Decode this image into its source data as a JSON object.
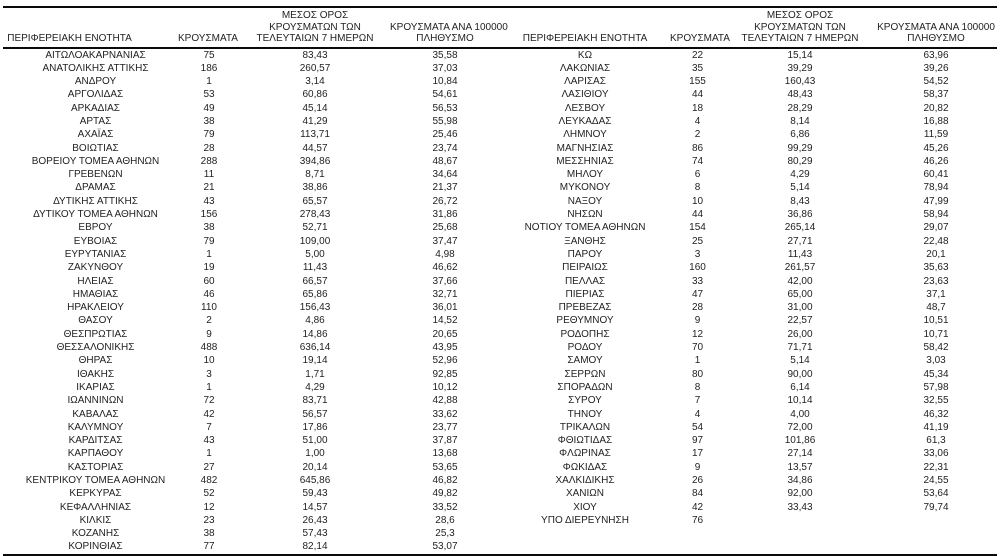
{
  "table": {
    "headers": {
      "region": "ΠΕΡΙΦΕΡΕΙΑΚΗ ΕΝΟΤΗΤΑ",
      "cases": "ΚΡΟΥΣΜΑΤΑ",
      "avg7_lines": [
        "ΜΕΣΟΣ ΟΡΟΣ",
        "ΚΡΟΥΣΜΑΤΩΝ ΤΩΝ",
        "ΤΕΛΕΥΤΑΙΩΝ 7 ΗΜΕΡΩΝ"
      ],
      "per100k_lines": [
        "ΚΡΟΥΣΜΑΤΑ ΑΝΑ 100000",
        "ΠΛΗΘΥΣΜΟ"
      ]
    },
    "rows_left": [
      [
        "ΑΙΤΩΛΟΑΚΑΡΝΑΝΙΑΣ",
        "75",
        "83,43",
        "35,58"
      ],
      [
        "ΑΝΑΤΟΛΙΚΗΣ ΑΤΤΙΚΗΣ",
        "186",
        "260,57",
        "37,03"
      ],
      [
        "ΑΝΔΡΟΥ",
        "1",
        "3,14",
        "10,84"
      ],
      [
        "ΑΡΓΟΛΙΔΑΣ",
        "53",
        "60,86",
        "54,61"
      ],
      [
        "ΑΡΚΑΔΙΑΣ",
        "49",
        "45,14",
        "56,53"
      ],
      [
        "ΑΡΤΑΣ",
        "38",
        "41,29",
        "55,98"
      ],
      [
        "ΑΧΑΪΑΣ",
        "79",
        "113,71",
        "25,46"
      ],
      [
        "ΒΟΙΩΤΙΑΣ",
        "28",
        "44,57",
        "23,74"
      ],
      [
        "ΒΟΡΕΙΟΥ ΤΟΜΕΑ ΑΘΗΝΩΝ",
        "288",
        "394,86",
        "48,67"
      ],
      [
        "ΓΡΕΒΕΝΩΝ",
        "11",
        "8,71",
        "34,64"
      ],
      [
        "ΔΡΑΜΑΣ",
        "21",
        "38,86",
        "21,37"
      ],
      [
        "ΔΥΤΙΚΗΣ ΑΤΤΙΚΗΣ",
        "43",
        "65,57",
        "26,72"
      ],
      [
        "ΔΥΤΙΚΟΥ ΤΟΜΕΑ ΑΘΗΝΩΝ",
        "156",
        "278,43",
        "31,86"
      ],
      [
        "ΕΒΡΟΥ",
        "38",
        "52,71",
        "25,68"
      ],
      [
        "ΕΥΒΟΙΑΣ",
        "79",
        "109,00",
        "37,47"
      ],
      [
        "ΕΥΡΥΤΑΝΙΑΣ",
        "1",
        "5,00",
        "4,98"
      ],
      [
        "ΖΑΚΥΝΘΟΥ",
        "19",
        "11,43",
        "46,62"
      ],
      [
        "ΗΛΕΙΑΣ",
        "60",
        "66,57",
        "37,66"
      ],
      [
        "ΗΜΑΘΙΑΣ",
        "46",
        "65,86",
        "32,71"
      ],
      [
        "ΗΡΑΚΛΕΙΟΥ",
        "110",
        "156,43",
        "36,01"
      ],
      [
        "ΘΑΣΟΥ",
        "2",
        "4,86",
        "14,52"
      ],
      [
        "ΘΕΣΠΡΩΤΙΑΣ",
        "9",
        "14,86",
        "20,65"
      ],
      [
        "ΘΕΣΣΑΛΟΝΙΚΗΣ",
        "488",
        "636,14",
        "43,95"
      ],
      [
        "ΘΗΡΑΣ",
        "10",
        "19,14",
        "52,96"
      ],
      [
        "ΙΘΑΚΗΣ",
        "3",
        "1,71",
        "92,85"
      ],
      [
        "ΙΚΑΡΙΑΣ",
        "1",
        "4,29",
        "10,12"
      ],
      [
        "ΙΩΑΝΝΙΝΩΝ",
        "72",
        "83,71",
        "42,88"
      ],
      [
        "ΚΑΒΑΛΑΣ",
        "42",
        "56,57",
        "33,62"
      ],
      [
        "ΚΑΛΥΜΝΟΥ",
        "7",
        "17,86",
        "23,77"
      ],
      [
        "ΚΑΡΔΙΤΣΑΣ",
        "43",
        "51,00",
        "37,87"
      ],
      [
        "ΚΑΡΠΑΘΟΥ",
        "1",
        "1,00",
        "13,68"
      ],
      [
        "ΚΑΣΤΟΡΙΑΣ",
        "27",
        "20,14",
        "53,65"
      ],
      [
        "ΚΕΝΤΡΙΚΟΥ ΤΟΜΕΑ ΑΘΗΝΩΝ",
        "482",
        "645,86",
        "46,82"
      ],
      [
        "ΚΕΡΚΥΡΑΣ",
        "52",
        "59,43",
        "49,82"
      ],
      [
        "ΚΕΦΑΛΛΗΝΙΑΣ",
        "12",
        "14,57",
        "33,52"
      ],
      [
        "ΚΙΛΚΙΣ",
        "23",
        "26,43",
        "28,6"
      ],
      [
        "ΚΟΖΑΝΗΣ",
        "38",
        "57,43",
        "25,3"
      ],
      [
        "ΚΟΡΙΝΘΙΑΣ",
        "77",
        "82,14",
        "53,07"
      ]
    ],
    "rows_right": [
      [
        "ΚΩ",
        "22",
        "15,14",
        "63,96"
      ],
      [
        "ΛΑΚΩΝΙΑΣ",
        "35",
        "39,29",
        "39,26"
      ],
      [
        "ΛΑΡΙΣΑΣ",
        "155",
        "160,43",
        "54,52"
      ],
      [
        "ΛΑΣΙΘΙΟΥ",
        "44",
        "48,43",
        "58,37"
      ],
      [
        "ΛΕΣΒΟΥ",
        "18",
        "28,29",
        "20,82"
      ],
      [
        "ΛΕΥΚΑΔΑΣ",
        "4",
        "8,14",
        "16,88"
      ],
      [
        "ΛΗΜΝΟΥ",
        "2",
        "6,86",
        "11,59"
      ],
      [
        "ΜΑΓΝΗΣΙΑΣ",
        "86",
        "99,29",
        "45,26"
      ],
      [
        "ΜΕΣΣΗΝΙΑΣ",
        "74",
        "80,29",
        "46,26"
      ],
      [
        "ΜΗΛΟΥ",
        "6",
        "4,29",
        "60,41"
      ],
      [
        "ΜΥΚΟΝΟΥ",
        "8",
        "5,14",
        "78,94"
      ],
      [
        "ΝΑΞΟΥ",
        "10",
        "8,43",
        "47,99"
      ],
      [
        "ΝΗΣΩΝ",
        "44",
        "36,86",
        "58,94"
      ],
      [
        "ΝΟΤΙΟΥ ΤΟΜΕΑ ΑΘΗΝΩΝ",
        "154",
        "265,14",
        "29,07"
      ],
      [
        "ΞΑΝΘΗΣ",
        "25",
        "27,71",
        "22,48"
      ],
      [
        "ΠΑΡΟΥ",
        "3",
        "11,43",
        "20,1"
      ],
      [
        "ΠΕΙΡΑΙΩΣ",
        "160",
        "261,57",
        "35,63"
      ],
      [
        "ΠΕΛΛΑΣ",
        "33",
        "42,00",
        "23,63"
      ],
      [
        "ΠΙΕΡΙΑΣ",
        "47",
        "65,00",
        "37,1"
      ],
      [
        "ΠΡΕΒΕΖΑΣ",
        "28",
        "31,00",
        "48,7"
      ],
      [
        "ΡΕΘΥΜΝΟΥ",
        "9",
        "22,57",
        "10,51"
      ],
      [
        "ΡΟΔΟΠΗΣ",
        "12",
        "26,00",
        "10,71"
      ],
      [
        "ΡΟΔΟΥ",
        "70",
        "71,71",
        "58,42"
      ],
      [
        "ΣΑΜΟΥ",
        "1",
        "5,14",
        "3,03"
      ],
      [
        "ΣΕΡΡΩΝ",
        "80",
        "90,00",
        "45,34"
      ],
      [
        "ΣΠΟΡΑΔΩΝ",
        "8",
        "6,14",
        "57,98"
      ],
      [
        "ΣΥΡΟΥ",
        "7",
        "10,14",
        "32,55"
      ],
      [
        "ΤΗΝΟΥ",
        "4",
        "4,00",
        "46,32"
      ],
      [
        "ΤΡΙΚΑΛΩΝ",
        "54",
        "72,00",
        "41,19"
      ],
      [
        "ΦΘΙΩΤΙΔΑΣ",
        "97",
        "101,86",
        "61,3"
      ],
      [
        "ΦΛΩΡΙΝΑΣ",
        "17",
        "27,14",
        "33,06"
      ],
      [
        "ΦΩΚΙΔΑΣ",
        "9",
        "13,57",
        "22,31"
      ],
      [
        "ΧΑΛΚΙΔΙΚΗΣ",
        "26",
        "34,86",
        "24,55"
      ],
      [
        "ΧΑΝΙΩΝ",
        "84",
        "92,00",
        "53,64"
      ],
      [
        "ΧΙΟΥ",
        "42",
        "33,43",
        "79,74"
      ],
      [
        "ΥΠΟ ΔΙΕΡΕΥΝΗΣΗ",
        "76",
        "",
        ""
      ]
    ]
  }
}
